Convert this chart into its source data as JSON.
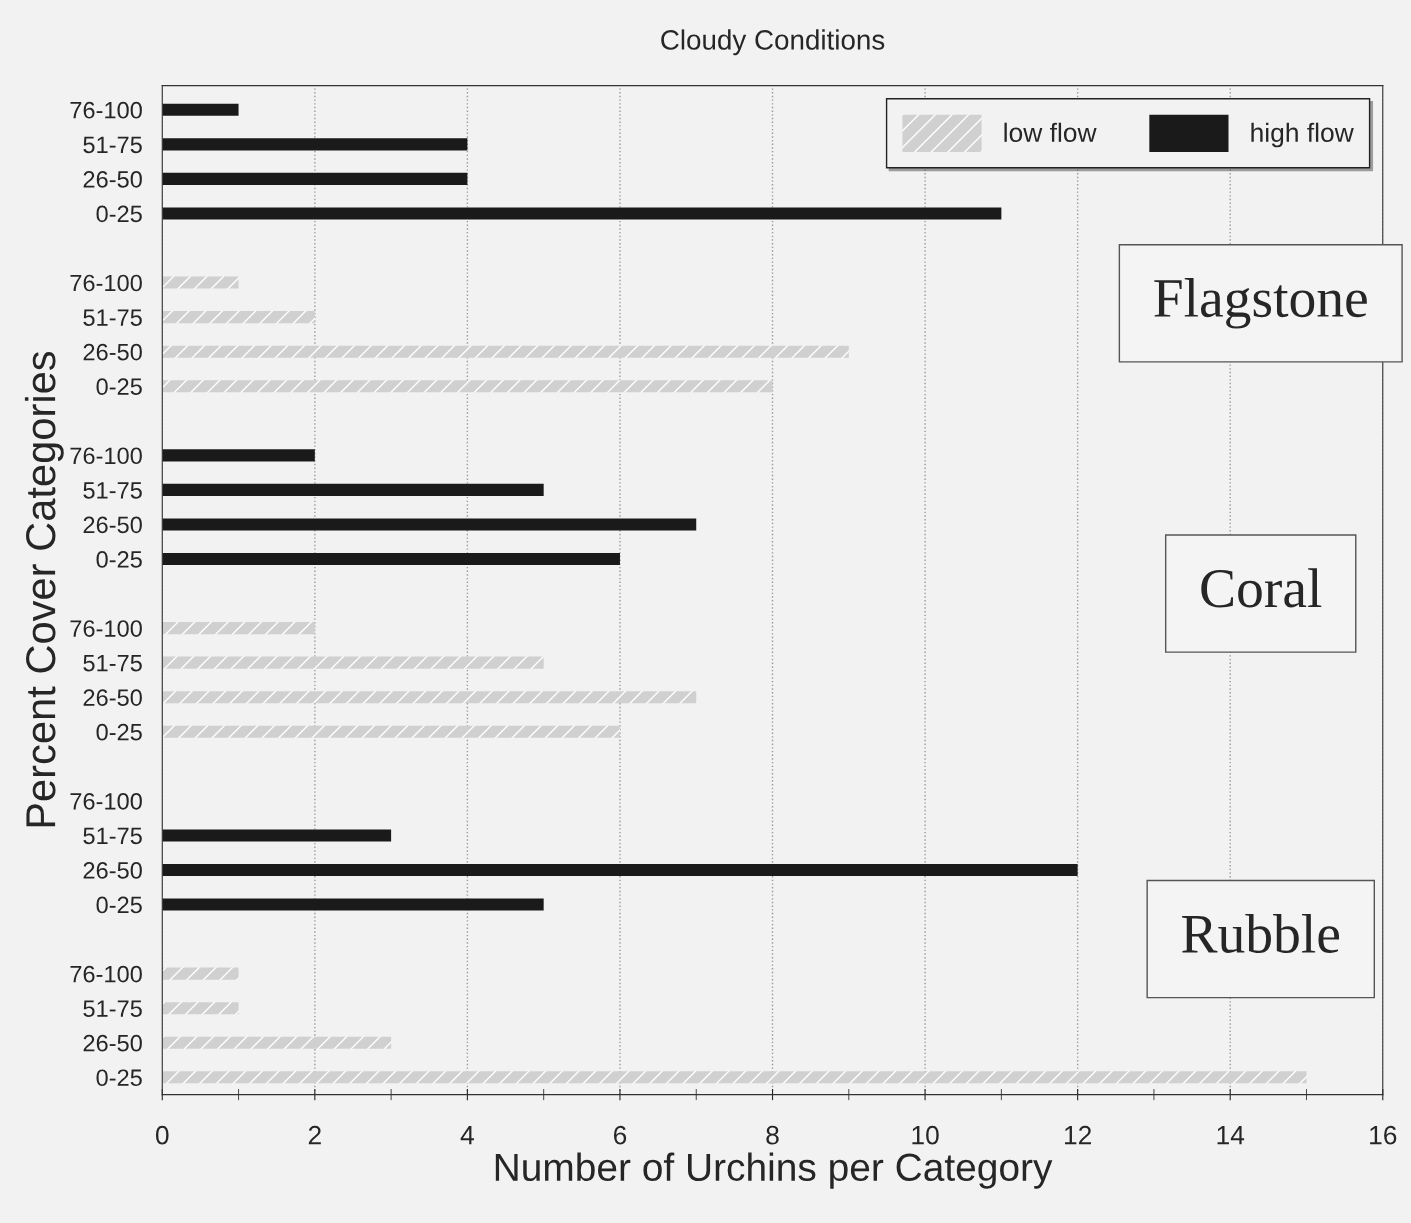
{
  "chart_data": {
    "type": "bar",
    "orientation": "horizontal",
    "title": "Cloudy Conditions",
    "xlabel": "Number of Urchins per Category",
    "ylabel": "Percent Cover Categories",
    "categories": [
      "76-100",
      "51-75",
      "26-50",
      "0-25",
      null,
      "76-100",
      "51-75",
      "26-50",
      "0-25",
      null,
      "76-100",
      "51-75",
      "26-50",
      "0-25",
      null,
      "76-100",
      "51-75",
      "26-50",
      "0-25",
      null,
      "76-100",
      "51-75",
      "26-50",
      "0-25",
      null,
      "76-100",
      "51-75",
      "26-50",
      "0-25"
    ],
    "series": [
      {
        "name": "low flow",
        "color": "#d0d0d0",
        "values": [
          null,
          null,
          null,
          null,
          null,
          1,
          2,
          9,
          8,
          null,
          null,
          null,
          null,
          null,
          null,
          2,
          5,
          7,
          6,
          null,
          null,
          null,
          null,
          null,
          null,
          1,
          1,
          3,
          15
        ]
      },
      {
        "name": "high flow",
        "color": "#1a1a1a",
        "values": [
          1,
          4,
          4,
          11,
          null,
          null,
          null,
          null,
          null,
          null,
          2,
          5,
          7,
          6,
          null,
          null,
          null,
          null,
          null,
          null,
          null,
          3,
          12,
          5,
          null,
          null,
          null,
          null,
          null
        ]
      }
    ],
    "xlim": [
      0,
      16
    ],
    "xticks": [
      0,
      {
        "value": 1,
        "label": null
      },
      2,
      {
        "value": 3,
        "label": null
      },
      4,
      {
        "value": 5,
        "label": null
      },
      6,
      {
        "value": 7,
        "label": null
      },
      8,
      {
        "value": 9,
        "label": null
      },
      10,
      {
        "value": 11,
        "label": null
      },
      12,
      {
        "value": 13,
        "label": null
      },
      14,
      {
        "value": 15,
        "label": null
      },
      16
    ],
    "grid": "x",
    "legend": "top right",
    "annotations": [
      "Flagstone",
      "Coral",
      "Rubble"
    ]
  }
}
